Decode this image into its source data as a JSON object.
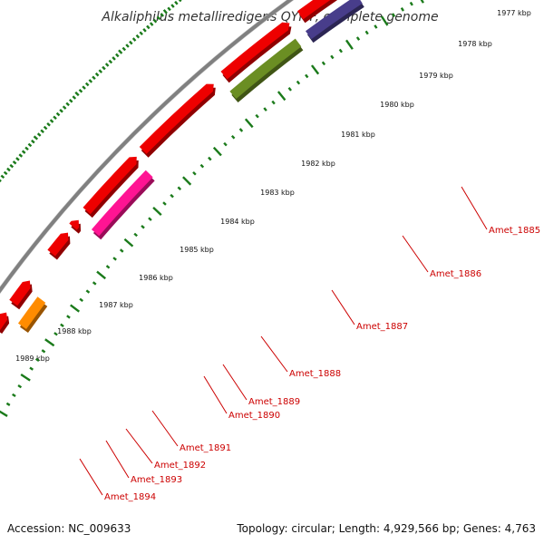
{
  "title": "Alkaliphilus metalliredigens QYMF, complete genome",
  "footer": {
    "accession": "Accession: NC_009633",
    "summary": "Topology: circular; Length: 4,929,566 bp; Genes: 4,763"
  },
  "colors": {
    "backbone": "#808080",
    "ruler_ticks": "#1a7a1a",
    "gene_forward": "#ee0000",
    "label_line": "#cc0000",
    "label_text": "#cc0000"
  },
  "ruler": {
    "unit": "kbp",
    "labels": [
      "1977 kbp",
      "1978 kbp",
      "1979 kbp",
      "1980 kbp",
      "1981 kbp",
      "1982 kbp",
      "1983 kbp",
      "1984 kbp",
      "1985 kbp",
      "1986 kbp",
      "1987 kbp",
      "1988 kbp",
      "1989 kbp"
    ]
  },
  "forward_genes_count": 14,
  "reverse_genes": [
    {
      "name": "Amet_1885",
      "color": "#483d8b"
    },
    {
      "name": "Amet_1886",
      "color": "#6b8e23"
    },
    {
      "name": "Amet_1887",
      "color": null
    },
    {
      "name": "Amet_1888",
      "color": "#ff1493"
    },
    {
      "name": "Amet_1889",
      "color": null
    },
    {
      "name": "Amet_1890",
      "color": null
    },
    {
      "name": "Amet_1891",
      "color": null
    },
    {
      "name": "Amet_1892",
      "color": "#ff8c00"
    },
    {
      "name": "Amet_1893",
      "color": null
    },
    {
      "name": "Amet_1894",
      "color": "#ff8c00"
    }
  ],
  "extra_reverse_genes": [
    {
      "color": "#4682b4"
    },
    {
      "color": "#000080"
    }
  ]
}
